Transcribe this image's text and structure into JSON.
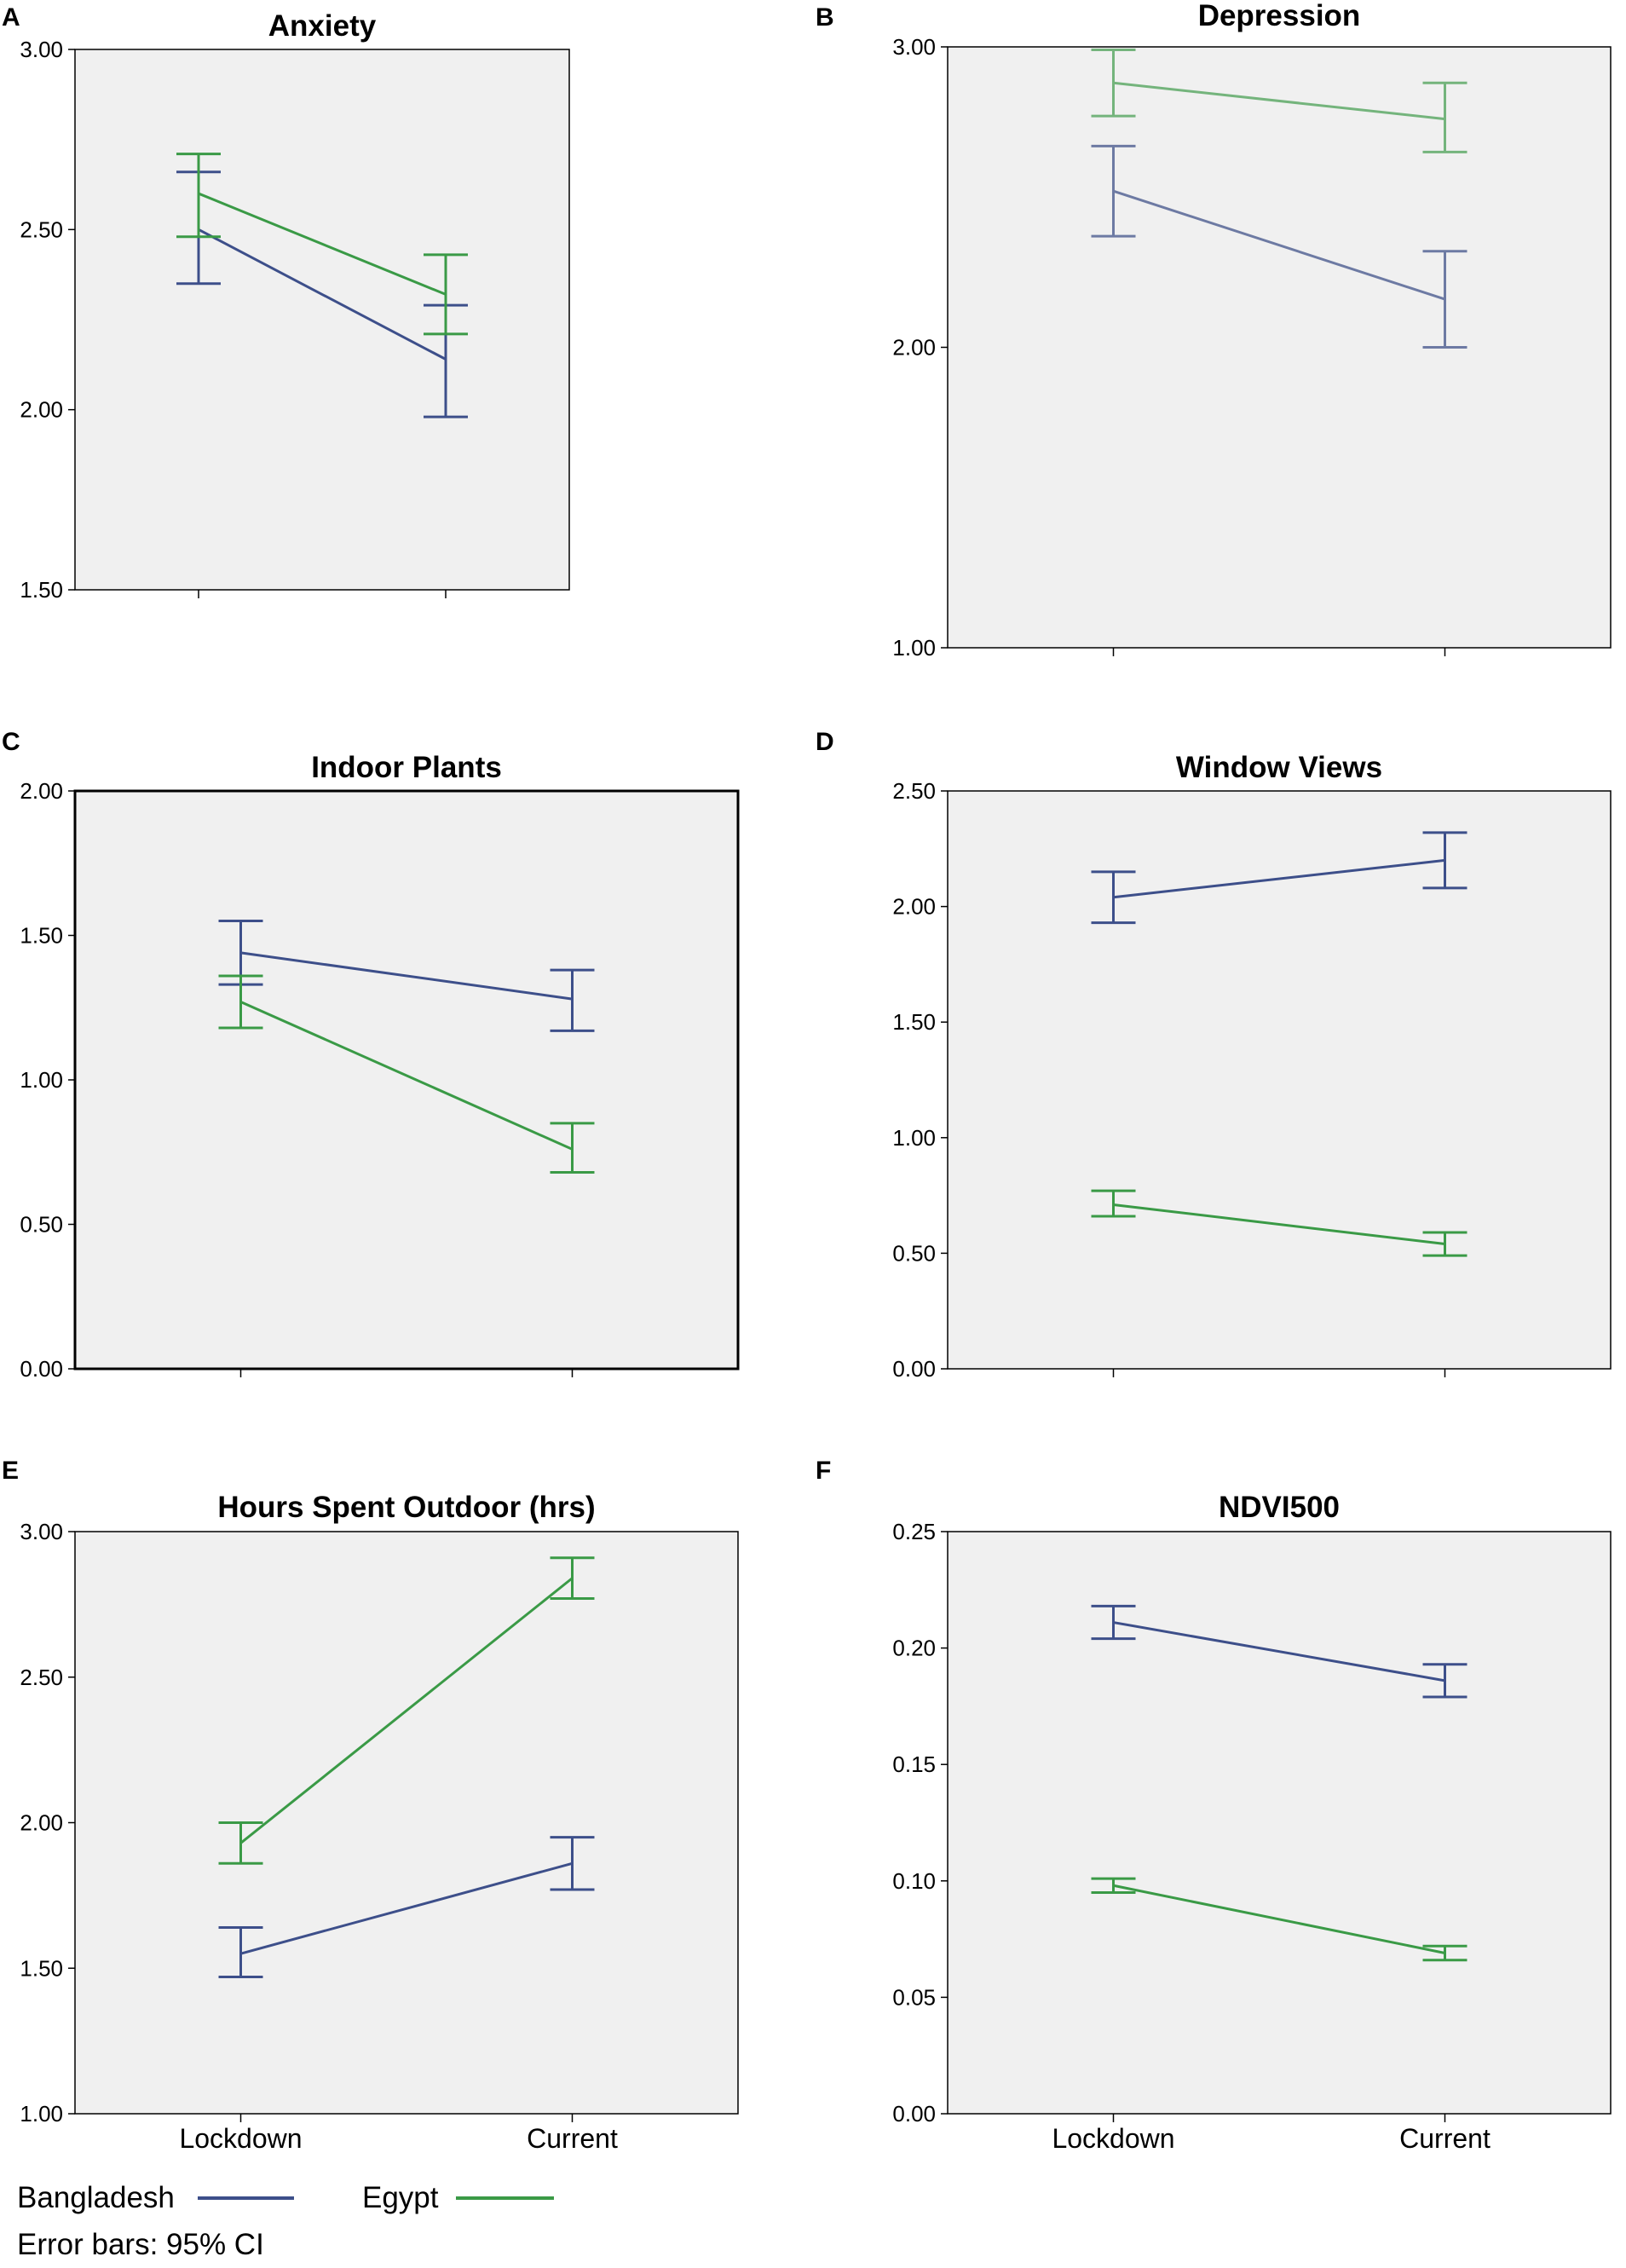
{
  "legend": {
    "series": [
      {
        "name": "Bangladesh",
        "color": "#3d4f8a"
      },
      {
        "name": "Egypt",
        "color": "#3a9a46"
      }
    ],
    "note": "Error bars: 95% CI"
  },
  "chart_data": [
    {
      "panel": "A",
      "title": "Anxiety",
      "type": "line",
      "categories": [
        "Lockdown",
        "Current"
      ],
      "show_category_labels": false,
      "ylim": [
        1.5,
        3.0
      ],
      "yticks": [
        "1.50",
        "2.00",
        "2.50",
        "3.00"
      ],
      "series": [
        {
          "name": "Bangladesh",
          "values": [
            2.5,
            2.14
          ],
          "ci_low": [
            2.35,
            1.98
          ],
          "ci_high": [
            2.66,
            2.29
          ]
        },
        {
          "name": "Egypt",
          "values": [
            2.6,
            2.32
          ],
          "ci_low": [
            2.48,
            2.21
          ],
          "ci_high": [
            2.71,
            2.43
          ]
        }
      ]
    },
    {
      "panel": "B",
      "title": "Depression",
      "type": "line",
      "categories": [
        "Lockdown",
        "Current"
      ],
      "show_category_labels": false,
      "faded": true,
      "ylim": [
        1.0,
        3.0
      ],
      "yticks": [
        "1.00",
        "2.00",
        "3.00"
      ],
      "series": [
        {
          "name": "Bangladesh",
          "values": [
            2.52,
            2.16
          ],
          "ci_low": [
            2.37,
            2.0
          ],
          "ci_high": [
            2.67,
            2.32
          ]
        },
        {
          "name": "Egypt",
          "values": [
            2.88,
            2.76
          ],
          "ci_low": [
            2.77,
            2.65
          ],
          "ci_high": [
            2.99,
            2.88
          ]
        }
      ]
    },
    {
      "panel": "C",
      "title": "Indoor Plants",
      "type": "line",
      "categories": [
        "Lockdown",
        "Current"
      ],
      "show_category_labels": false,
      "ylim": [
        0.0,
        2.0
      ],
      "yticks": [
        "0.00",
        "0.50",
        "1.00",
        "1.50",
        "2.00"
      ],
      "series": [
        {
          "name": "Bangladesh",
          "values": [
            1.44,
            1.28
          ],
          "ci_low": [
            1.33,
            1.17
          ],
          "ci_high": [
            1.55,
            1.38
          ]
        },
        {
          "name": "Egypt",
          "values": [
            1.27,
            0.76
          ],
          "ci_low": [
            1.18,
            0.68
          ],
          "ci_high": [
            1.36,
            0.85
          ]
        }
      ]
    },
    {
      "panel": "D",
      "title": "Window Views",
      "type": "line",
      "categories": [
        "Lockdown",
        "Current"
      ],
      "show_category_labels": false,
      "ylim": [
        0.0,
        2.5
      ],
      "yticks": [
        "0.00",
        "0.50",
        "1.00",
        "1.50",
        "2.00",
        "2.50"
      ],
      "series": [
        {
          "name": "Bangladesh",
          "values": [
            2.04,
            2.2
          ],
          "ci_low": [
            1.93,
            2.08
          ],
          "ci_high": [
            2.15,
            2.32
          ]
        },
        {
          "name": "Egypt",
          "values": [
            0.71,
            0.54
          ],
          "ci_low": [
            0.66,
            0.49
          ],
          "ci_high": [
            0.77,
            0.59
          ]
        }
      ]
    },
    {
      "panel": "E",
      "title": "Hours Spent Outdoor (hrs)",
      "type": "line",
      "categories": [
        "Lockdown",
        "Current"
      ],
      "show_category_labels": true,
      "ylim": [
        1.0,
        3.0
      ],
      "yticks": [
        "1.00",
        "1.50",
        "2.00",
        "2.50",
        "3.00"
      ],
      "series": [
        {
          "name": "Bangladesh",
          "values": [
            1.55,
            1.86
          ],
          "ci_low": [
            1.47,
            1.77
          ],
          "ci_high": [
            1.64,
            1.95
          ]
        },
        {
          "name": "Egypt",
          "values": [
            1.93,
            2.84
          ],
          "ci_low": [
            1.86,
            2.77
          ],
          "ci_high": [
            2.0,
            2.91
          ]
        }
      ]
    },
    {
      "panel": "F",
      "title": "NDVI500",
      "type": "line",
      "categories": [
        "Lockdown",
        "Current"
      ],
      "show_category_labels": true,
      "ylim": [
        0.0,
        0.25
      ],
      "yticks": [
        "0.00",
        "0.05",
        "0.10",
        "0.15",
        "0.20",
        "0.25"
      ],
      "series": [
        {
          "name": "Bangladesh",
          "values": [
            0.211,
            0.186
          ],
          "ci_low": [
            0.204,
            0.179
          ],
          "ci_high": [
            0.218,
            0.193
          ]
        },
        {
          "name": "Egypt",
          "values": [
            0.098,
            0.069
          ],
          "ci_low": [
            0.095,
            0.066
          ],
          "ci_high": [
            0.101,
            0.072
          ]
        }
      ]
    }
  ]
}
